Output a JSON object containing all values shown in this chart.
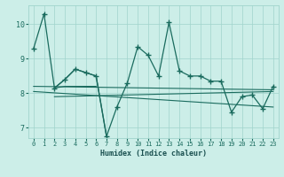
{
  "xlabel": "Humidex (Indice chaleur)",
  "bg_color": "#cceee8",
  "line_color": "#1a6b5e",
  "grid_color": "#a0d4cc",
  "xlim": [
    -0.5,
    23.5
  ],
  "ylim": [
    6.7,
    10.55
  ],
  "xticks": [
    0,
    1,
    2,
    3,
    4,
    5,
    6,
    7,
    8,
    9,
    10,
    11,
    12,
    13,
    14,
    15,
    16,
    17,
    18,
    19,
    20,
    21,
    22,
    23
  ],
  "yticks": [
    7,
    8,
    9,
    10
  ],
  "line_big": {
    "x": [
      0,
      1,
      2,
      3,
      4,
      5,
      6,
      7,
      8,
      9,
      10,
      11,
      12,
      13,
      14,
      15,
      16,
      17,
      18,
      19,
      20,
      21,
      22,
      23
    ],
    "y": [
      9.3,
      10.3,
      8.15,
      8.4,
      8.7,
      8.6,
      8.5,
      6.75,
      7.6,
      8.3,
      9.35,
      9.1,
      8.5,
      10.05,
      8.65,
      8.5,
      8.5,
      8.35,
      8.35,
      7.45,
      7.9,
      7.95,
      7.55,
      8.2
    ]
  },
  "line_main": {
    "x": [
      2,
      3,
      4,
      5,
      6,
      7,
      8,
      9,
      10,
      11,
      12,
      13,
      14,
      15,
      16,
      17,
      18,
      19,
      20,
      21,
      22,
      23
    ],
    "y": [
      8.15,
      8.4,
      8.7,
      8.6,
      8.5,
      6.75,
      7.6,
      8.3,
      9.35,
      9.1,
      8.5,
      10.05,
      8.65,
      8.5,
      8.5,
      8.35,
      8.35,
      7.45,
      7.9,
      7.95,
      7.55,
      8.2
    ]
  },
  "trend_flat": {
    "x": [
      0,
      23
    ],
    "y": [
      8.2,
      8.1
    ]
  },
  "trend_down": {
    "x": [
      0,
      23
    ],
    "y": [
      8.1,
      7.65
    ]
  },
  "trend_gentle": {
    "x": [
      2,
      23
    ],
    "y": [
      7.85,
      8.0
    ]
  },
  "line_short": {
    "x": [
      2,
      3,
      4,
      5,
      6
    ],
    "y": [
      8.15,
      8.2,
      8.2,
      8.2,
      8.2
    ]
  }
}
